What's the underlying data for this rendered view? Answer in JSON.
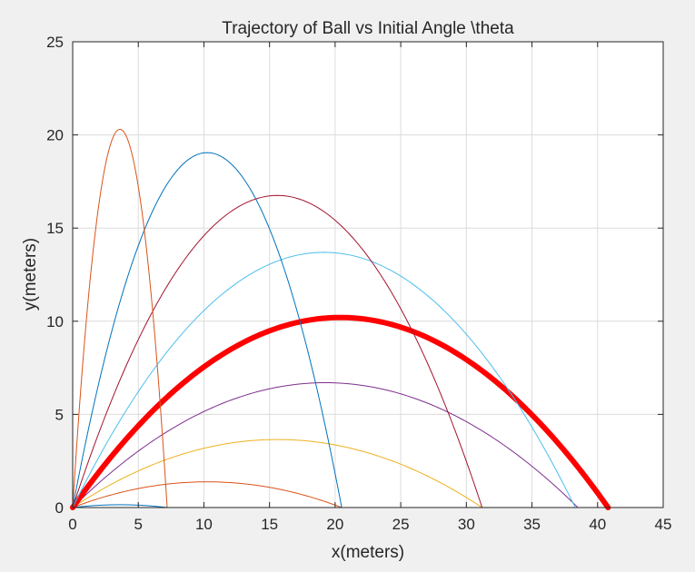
{
  "chart_data": {
    "type": "line",
    "title": "Trajectory of Ball vs Initial Angle \\theta",
    "xlabel": "x(meters)",
    "ylabel": "y(meters)",
    "xlim": [
      0,
      45
    ],
    "ylim": [
      0,
      25
    ],
    "xticks": [
      0,
      5,
      10,
      15,
      20,
      25,
      30,
      35,
      40,
      45
    ],
    "yticks": [
      0,
      5,
      10,
      15,
      20,
      25
    ],
    "grid": true,
    "legend": "none",
    "series": [
      {
        "range": 7.2,
        "apex_y": 0.15,
        "color": "#0072bd",
        "width": 1
      },
      {
        "range": 20.5,
        "apex_y": 1.38,
        "color": "#d95319",
        "width": 1
      },
      {
        "range": 31.2,
        "apex_y": 3.65,
        "color": "#edb120",
        "width": 1
      },
      {
        "range": 38.5,
        "apex_y": 6.7,
        "color": "#7e2f8e",
        "width": 1
      },
      {
        "range": 40.8,
        "apex_y": 10.2,
        "color": "#ff0000",
        "width": 6
      },
      {
        "range": 38.3,
        "apex_y": 13.7,
        "color": "#4dbeee",
        "width": 1
      },
      {
        "range": 31.2,
        "apex_y": 16.75,
        "color": "#a2142f",
        "width": 1
      },
      {
        "range": 20.5,
        "apex_y": 19.05,
        "color": "#0072bd",
        "width": 1
      },
      {
        "range": 7.2,
        "apex_y": 20.3,
        "color": "#d95319",
        "width": 1
      }
    ]
  }
}
